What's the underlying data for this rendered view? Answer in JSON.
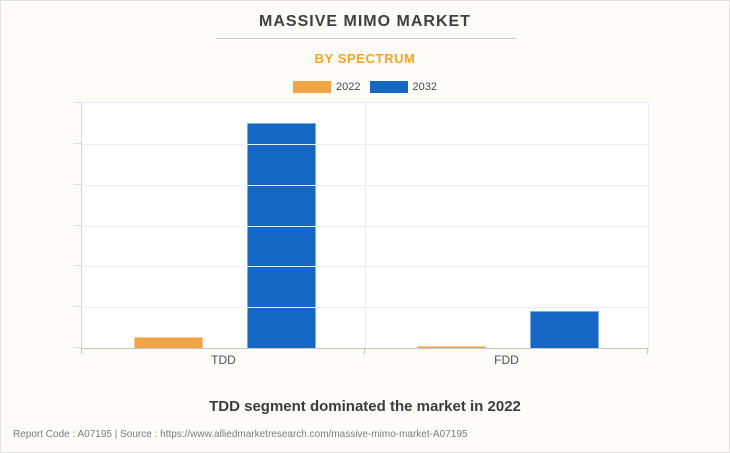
{
  "header": {
    "title": "MASSIVE MIMO MARKET",
    "subtitle": "BY SPECTRUM"
  },
  "chart_data": {
    "type": "bar",
    "title": "MASSIVE MIMO MARKET",
    "subtitle": "BY SPECTRUM",
    "categories": [
      "TDD",
      "FDD"
    ],
    "series": [
      {
        "name": "2022",
        "color": "#F0A445",
        "values": [
          0.28,
          0.06
        ]
      },
      {
        "name": "2032",
        "color": "#1567C4",
        "values": [
          5.5,
          0.9
        ]
      }
    ],
    "ylim": [
      0,
      6
    ],
    "xlabel": "",
    "ylabel": "",
    "y_tick_labels": [],
    "grid": "horizontal gridlines at 6 equal intervals; vertical divider between categories; y-axis unlabeled",
    "legend_position": "top-center"
  },
  "caption": "TDD segment dominated the market in 2022",
  "footer": {
    "text": "Report Code : A07195  |  Source : https://www.alliedmarketresearch.com/massive-mimo-market-A07195"
  },
  "colors": {
    "accent_orange": "#F9A51F",
    "bar_2022": "#F0A445",
    "bar_2032": "#1567C4",
    "title_text": "#3F3F3F",
    "background": "#FDFCF9"
  }
}
